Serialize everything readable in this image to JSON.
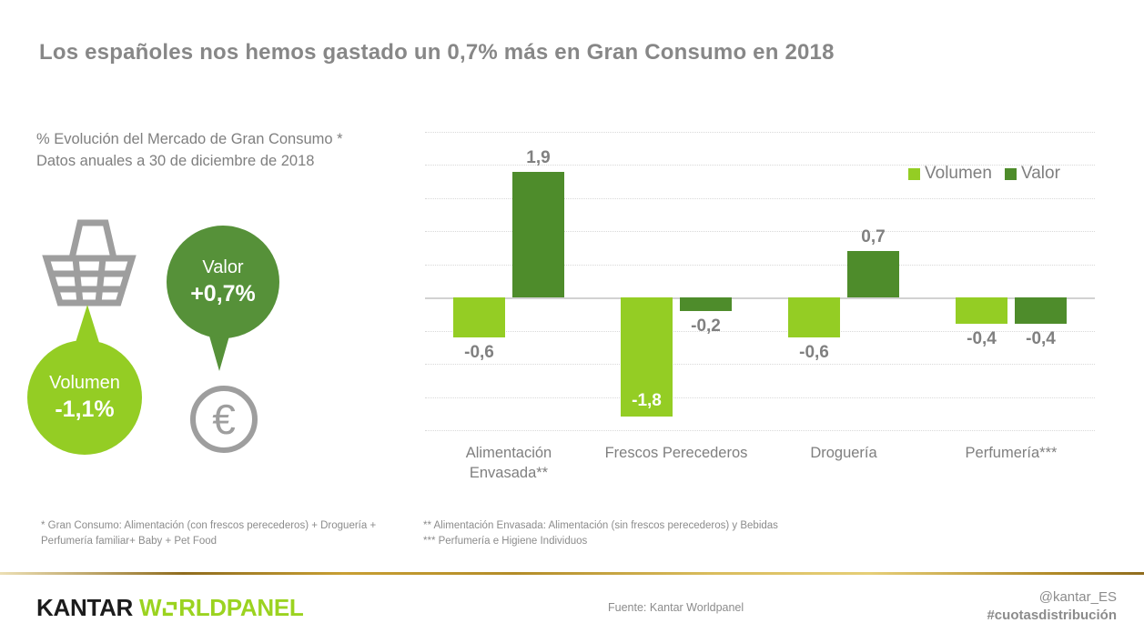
{
  "title": "Los españoles nos hemos gastado un 0,7% más en Gran Consumo en 2018",
  "subtitle_line1": "% Evolución del Mercado de Gran Consumo *",
  "subtitle_line2": "Datos anuales a 30 de diciembre de 2018",
  "summary": {
    "volumen": {
      "label": "Volumen",
      "value": "-1,1%",
      "color": "#94CD24"
    },
    "valor": {
      "label": "Valor",
      "value": "+0,7%",
      "color": "#569139"
    },
    "euro_symbol": "€",
    "icon_color": "#9E9E9E"
  },
  "chart_data": {
    "type": "bar",
    "title": "% Evolución del Mercado de Gran Consumo * — Datos anuales a 30 de diciembre de 2018",
    "categories": [
      "Alimentación Envasada**",
      "Frescos Perecederos",
      "Droguería",
      "Perfumería***"
    ],
    "category_lines": [
      [
        "Alimentación",
        "Envasada**"
      ],
      [
        "Frescos Perecederos"
      ],
      [
        "Droguería"
      ],
      [
        "Perfumería***"
      ]
    ],
    "series": [
      {
        "name": "Volumen",
        "color": "#94CD24",
        "values": [
          -0.6,
          -1.8,
          -0.6,
          -0.4
        ],
        "labels": [
          "-0,6",
          "-1,8",
          "-0,6",
          "-0,4"
        ],
        "label_placement": [
          "below",
          "inside",
          "below",
          "below"
        ]
      },
      {
        "name": "Valor",
        "color": "#4E8C2B",
        "values": [
          1.9,
          -0.2,
          0.7,
          -0.4
        ],
        "labels": [
          "1,9",
          "-0,2",
          "0,7",
          "-0,4"
        ],
        "label_placement": [
          "above",
          "below",
          "above",
          "below"
        ]
      }
    ],
    "ylim": [
      -2.0,
      2.5
    ],
    "grid_step": 0.5,
    "grid_style": "dotted-horizontal",
    "legend_position": "top-right",
    "label_color": "#808080",
    "inside_label_color": "#FFFFFF"
  },
  "footnotes": {
    "left_line1": "* Gran Consumo: Alimentación (con frescos perecederos) + Droguería +",
    "left_line2": "Perfumería familiar+ Baby + Pet Food",
    "right_line1": "** Alimentación Envasada: Alimentación (sin frescos perecederos) y Bebidas",
    "right_line2": "*** Perfumería e Higiene Individuos"
  },
  "footer": {
    "logo_kantar": "KANTAR",
    "logo_w": "W",
    "logo_rldpanel": "RLDPANEL",
    "kantar_color": "#1C1C1C",
    "worldpanel_color": "#9BD320",
    "source": "Fuente: Kantar Worldpanel",
    "twitter": "@kantar_ES",
    "hashtag": "#cuotasdistribución"
  }
}
